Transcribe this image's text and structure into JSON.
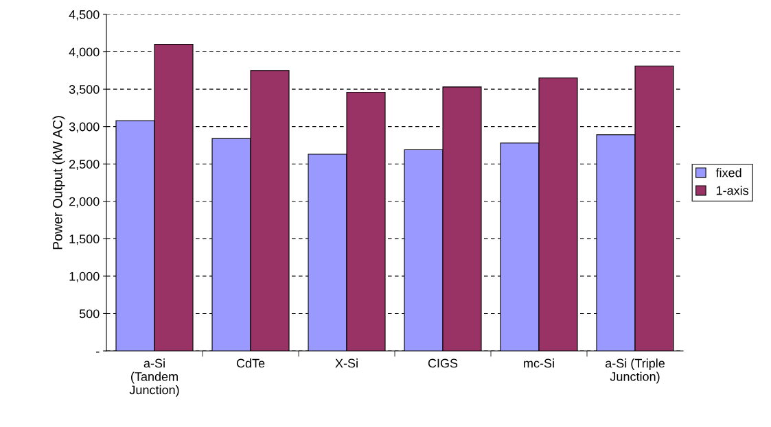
{
  "chart_data": {
    "type": "bar",
    "ylabel": "Power Output (kW AC)",
    "categories": [
      "a-Si\n(Tandem\nJunction)",
      "CdTe",
      "X-Si",
      "CIGS",
      "mc-Si",
      "a-Si (Triple\nJunction)"
    ],
    "series": [
      {
        "name": "fixed",
        "color": "#9999ff",
        "values": [
          3080,
          2840,
          2630,
          2690,
          2780,
          2890
        ]
      },
      {
        "name": "1-axis",
        "color": "#993366",
        "values": [
          4100,
          3750,
          3460,
          3530,
          3650,
          3810
        ]
      }
    ],
    "ylim": [
      0,
      4500
    ],
    "yticks": [
      {
        "value": 0,
        "label": "-"
      },
      {
        "value": 500,
        "label": "500"
      },
      {
        "value": 1000,
        "label": "1,000"
      },
      {
        "value": 1500,
        "label": "1,500"
      },
      {
        "value": 2000,
        "label": "2,000"
      },
      {
        "value": 2500,
        "label": "2,500"
      },
      {
        "value": 3000,
        "label": "3,000"
      },
      {
        "value": 3500,
        "label": "3,500"
      },
      {
        "value": 4000,
        "label": "4,000"
      },
      {
        "value": 4500,
        "label": "4,500"
      }
    ],
    "grid": "y",
    "legend": "right"
  }
}
